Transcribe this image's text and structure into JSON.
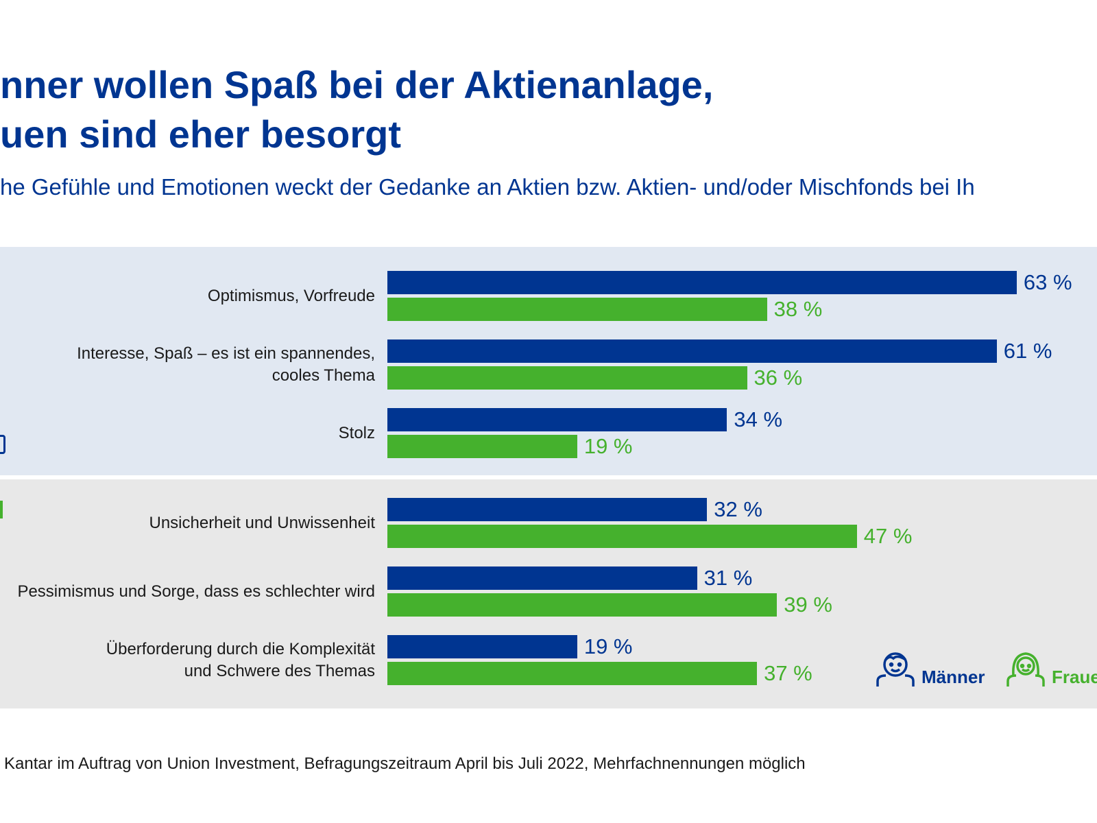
{
  "title_lines": [
    "nner wollen Spaß bei der Aktienanlage,",
    "uen sind eher besorgt"
  ],
  "subtitle": "he Gefühle und Emotionen weckt der Gedanke an Aktien bzw. Aktien- und/oder Mischfonds bei Ih",
  "footer": "Kantar im Auftrag von Union Investment, Befragungszeitraum April bis Juli 2022, Mehrfachnennungen möglich",
  "colors": {
    "maenner": "#003591",
    "frauen": "#45b12d",
    "panel_positive": "#e1e8f2",
    "panel_negative": "#e8e8e8"
  },
  "legend": {
    "maenner": "Männer",
    "frauen": "Frauen",
    "maenner_icon": "boy-face-icon",
    "frauen_icon": "girl-face-icon"
  },
  "chart_data": {
    "type": "bar",
    "orientation": "horizontal",
    "categories": [
      [
        "Optimismus, Vorfreude"
      ],
      [
        "Interesse, Spaß – es ist ein spannendes,",
        "cooles Thema"
      ],
      [
        "Stolz"
      ],
      [
        "Unsicherheit und Unwissenheit"
      ],
      [
        "Pessimismus und Sorge, dass es schlechter wird"
      ],
      [
        "Überforderung durch die Komplexität",
        "und Schwere des Themas"
      ]
    ],
    "series": [
      {
        "name": "Männer",
        "values": [
          63,
          61,
          34,
          32,
          31,
          19
        ]
      },
      {
        "name": "Frauen",
        "values": [
          38,
          36,
          19,
          47,
          39,
          37
        ]
      }
    ],
    "value_suffix": " %",
    "xlim": [
      0,
      70
    ],
    "grid": false,
    "legend_position": "bottom-right"
  }
}
